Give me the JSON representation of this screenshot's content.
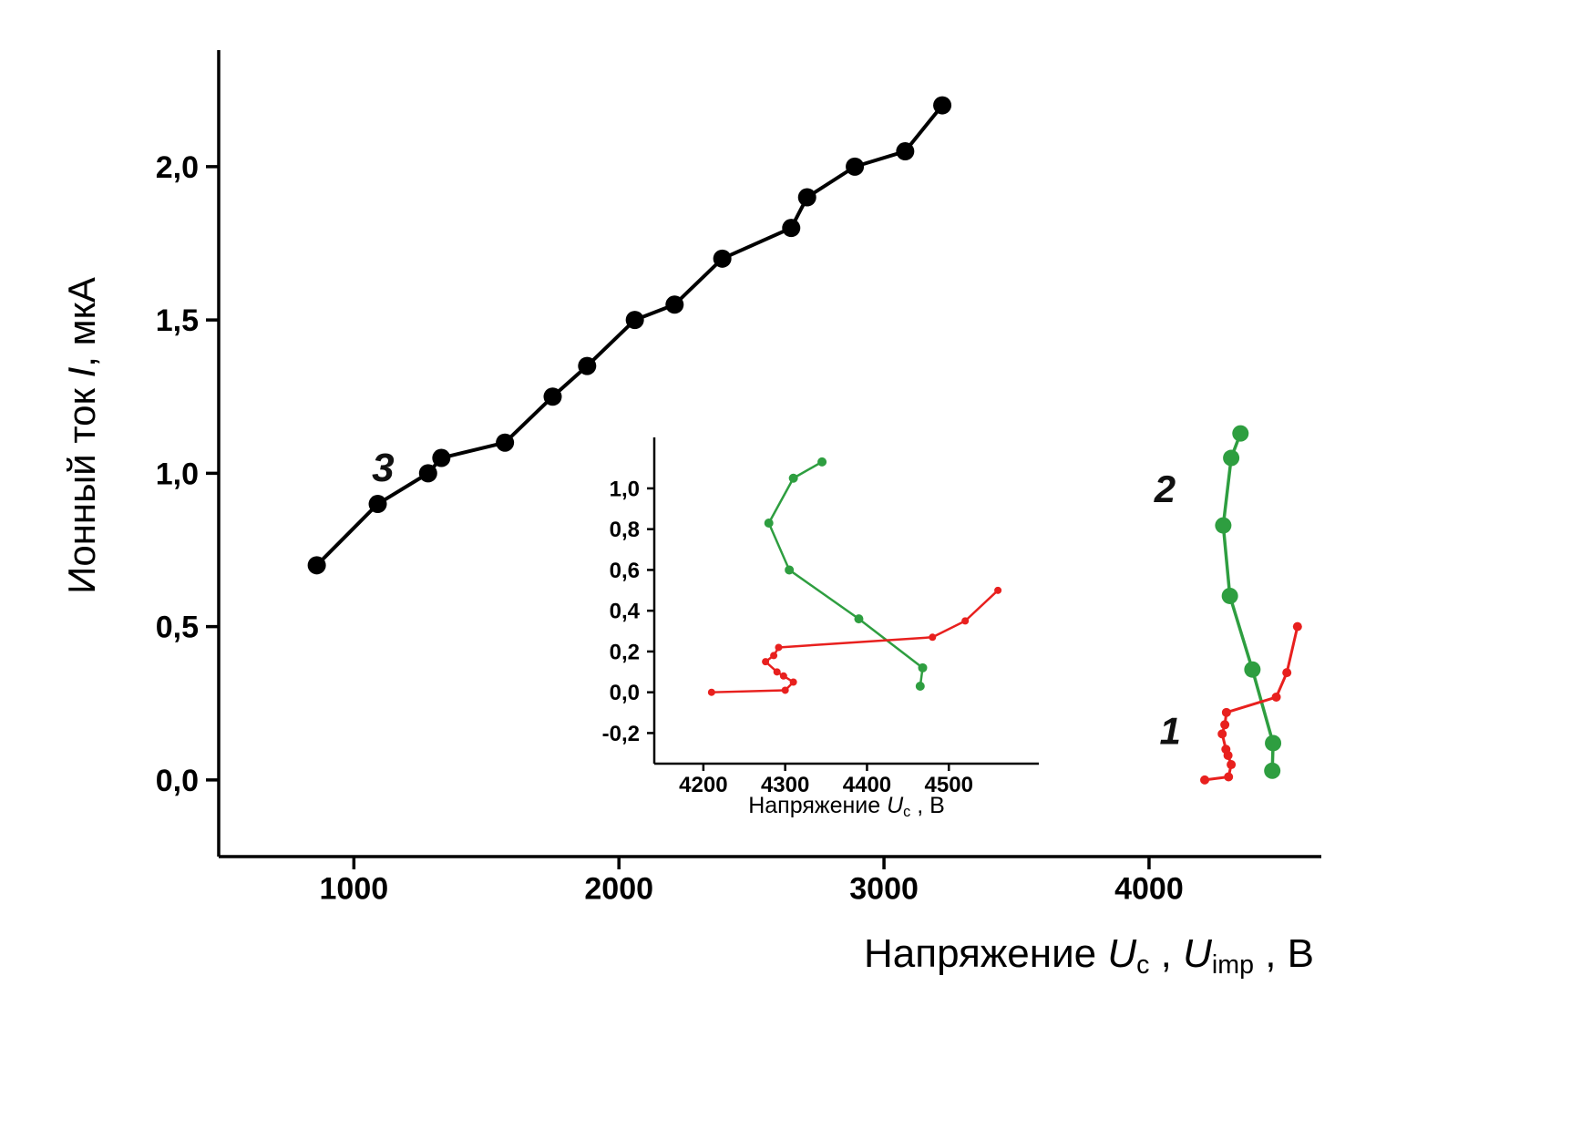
{
  "figure": {
    "background": "#ffffff",
    "axis_color": "#000000"
  },
  "chart_data": [
    {
      "id": "main",
      "type": "line",
      "title": "",
      "xlabel": "Напряжение Uc , Uimp , В",
      "ylabel": "Ионный ток I, мкА",
      "xlabel_parts": [
        {
          "t": "Напряжение "
        },
        {
          "t": "U",
          "s": "i"
        },
        {
          "t": "c",
          "s": "sub"
        },
        {
          "t": " , "
        },
        {
          "t": "U",
          "s": "i"
        },
        {
          "t": "imp",
          "s": "sub"
        },
        {
          "t": " , В"
        }
      ],
      "ylabel_parts": [
        {
          "t": "Ионный ток "
        },
        {
          "t": "I",
          "s": "i"
        },
        {
          "t": ", мкА"
        }
      ],
      "xlim": [
        490,
        4650
      ],
      "ylim": [
        -0.25,
        2.38
      ],
      "grid": false,
      "legend": false,
      "axis": {
        "color": "#000000",
        "width": 3.5,
        "tick": 14,
        "font": 34
      },
      "xticks": [
        {
          "v": 1000,
          "label": "1000"
        },
        {
          "v": 2000,
          "label": "2000"
        },
        {
          "v": 3000,
          "label": "3000"
        },
        {
          "v": 4000,
          "label": "4000"
        }
      ],
      "yticks": [
        {
          "v": 0.0,
          "label": "0,0"
        },
        {
          "v": 0.5,
          "label": "0,5"
        },
        {
          "v": 1.0,
          "label": "1,0"
        },
        {
          "v": 1.5,
          "label": "1,5"
        },
        {
          "v": 2.0,
          "label": "2,0"
        }
      ],
      "series": [
        {
          "name": "3",
          "color": "#000000",
          "line_width": 4,
          "marker_r": 10,
          "x": [
            860,
            1090,
            1280,
            1330,
            1570,
            1750,
            1880,
            2060,
            2210,
            2390,
            2650,
            2710,
            2890,
            3080,
            3220
          ],
          "y": [
            0.7,
            0.9,
            1.0,
            1.05,
            1.1,
            1.25,
            1.35,
            1.5,
            1.55,
            1.7,
            1.8,
            1.9,
            2.0,
            2.05,
            2.2
          ]
        },
        {
          "name": "2",
          "color": "#2e9e40",
          "line_width": 3.5,
          "marker_r": 9,
          "x": [
            4345,
            4310,
            4280,
            4305,
            4390,
            4468,
            4465
          ],
          "y": [
            1.13,
            1.05,
            0.83,
            0.6,
            0.36,
            0.12,
            0.03
          ]
        },
        {
          "name": "1",
          "color": "#e8201e",
          "line_width": 3,
          "marker_r": 5,
          "x": [
            4210,
            4300,
            4310,
            4298,
            4290,
            4276,
            4286,
            4292,
            4480,
            4520,
            4560
          ],
          "y": [
            0.0,
            0.01,
            0.05,
            0.08,
            0.1,
            0.15,
            0.18,
            0.22,
            0.27,
            0.35,
            0.5
          ]
        }
      ],
      "annotations": [
        {
          "text": "3",
          "x": 1110,
          "y": 1.02,
          "color": "#111111",
          "font": 44
        },
        {
          "text": "2",
          "x": 4060,
          "y": 0.95,
          "color": "#111111",
          "font": 42
        },
        {
          "text": "1",
          "x": 4080,
          "y": 0.16,
          "color": "#111111",
          "font": 42
        }
      ]
    },
    {
      "id": "inset",
      "type": "line",
      "title": "",
      "xlabel": "Напряжение Uc , В",
      "ylabel": "",
      "xlabel_parts": [
        {
          "t": "Напряжение "
        },
        {
          "t": "U",
          "s": "i"
        },
        {
          "t": "c",
          "s": "sub"
        },
        {
          "t": " , В"
        }
      ],
      "ylabel_parts": [],
      "xlim": [
        4140,
        4610
      ],
      "ylim": [
        -0.35,
        1.25
      ],
      "grid": false,
      "legend": false,
      "axis": {
        "color": "#000000",
        "width": 2.5,
        "tick": 8,
        "font": 24
      },
      "xticks": [
        {
          "v": 4200,
          "label": "4200"
        },
        {
          "v": 4300,
          "label": "4300"
        },
        {
          "v": 4400,
          "label": "4400"
        },
        {
          "v": 4500,
          "label": "4500"
        }
      ],
      "yticks": [
        {
          "v": -0.2,
          "label": "-0,2"
        },
        {
          "v": 0.0,
          "label": "0,0"
        },
        {
          "v": 0.2,
          "label": "0,2"
        },
        {
          "v": 0.4,
          "label": "0,4"
        },
        {
          "v": 0.6,
          "label": "0,6"
        },
        {
          "v": 0.8,
          "label": "0,8"
        },
        {
          "v": 1.0,
          "label": "1,0"
        }
      ],
      "series": [
        {
          "name": "2",
          "color": "#2e9e40",
          "line_width": 2.5,
          "marker_r": 5,
          "x": [
            4345,
            4310,
            4280,
            4305,
            4390,
            4468,
            4465
          ],
          "y": [
            1.13,
            1.05,
            0.83,
            0.6,
            0.36,
            0.12,
            0.03
          ]
        },
        {
          "name": "1",
          "color": "#e8201e",
          "line_width": 2.5,
          "marker_r": 4,
          "x": [
            4210,
            4300,
            4310,
            4298,
            4290,
            4276,
            4286,
            4292,
            4480,
            4520,
            4560
          ],
          "y": [
            0.0,
            0.01,
            0.05,
            0.08,
            0.1,
            0.15,
            0.18,
            0.22,
            0.27,
            0.35,
            0.5
          ]
        }
      ],
      "annotations": []
    }
  ]
}
